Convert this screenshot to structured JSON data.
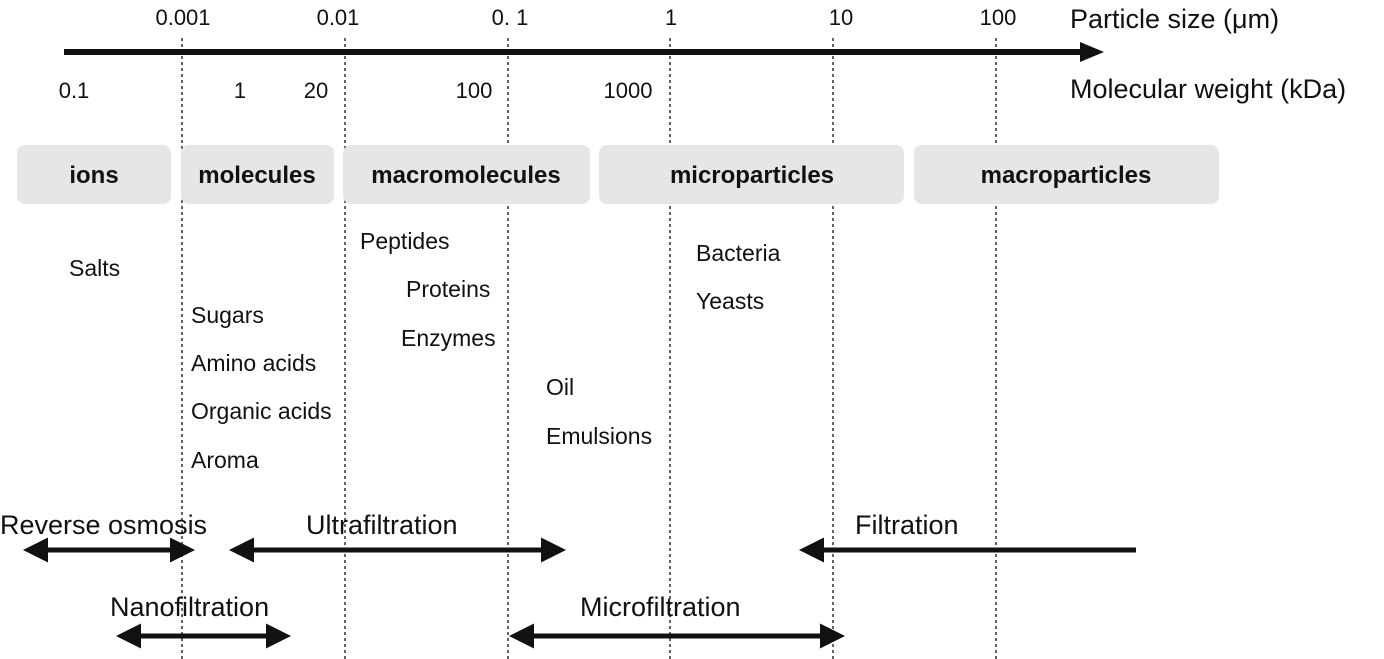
{
  "particle_size_axis": {
    "title": "Particle size (μm)",
    "ticks": [
      "0.001",
      "0.01",
      "0. 1",
      "1",
      "10",
      "100"
    ]
  },
  "molecular_weight_axis": {
    "title": "Molecular weight (kDa)",
    "ticks": [
      "0.1",
      "1",
      "20",
      "100",
      "1000"
    ]
  },
  "categories": [
    "ions",
    "molecules",
    "macromolecules",
    "microparticles",
    "macroparticles"
  ],
  "substances": {
    "ions": [
      "Salts"
    ],
    "molecules": [
      "Sugars",
      "Amino acids",
      "Organic acids",
      "Aroma"
    ],
    "macromolecules": [
      "Peptides",
      "Proteins",
      "Enzymes"
    ],
    "dispersions": [
      "Oil",
      "Emulsions"
    ],
    "microparticles": [
      "Bacteria",
      "Yeasts"
    ]
  },
  "processes": {
    "reverse_osmosis": "Reverse osmosis",
    "ultrafiltration": "Ultrafiltration",
    "filtration": "Filtration",
    "nanofiltration": "Nanofiltration",
    "microfiltration": "Microfiltration"
  },
  "colors": {
    "category_box": "#e6e6e6",
    "ink": "#111111"
  }
}
